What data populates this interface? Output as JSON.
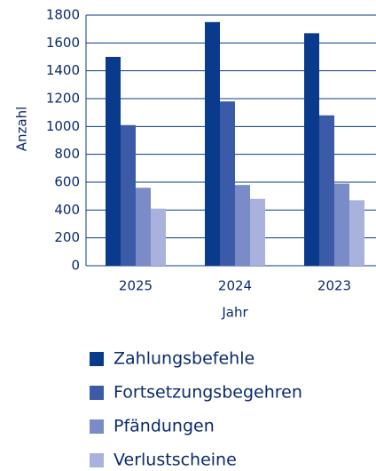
{
  "chart_data": {
    "type": "bar",
    "categories": [
      "2025",
      "2024",
      "2023"
    ],
    "series": [
      {
        "name": "Zahlungsbefehle",
        "color": "#0a3a8c",
        "values": [
          1500,
          1750,
          1670
        ]
      },
      {
        "name": "Fortsetzungsbegehren",
        "color": "#3b5aa8",
        "values": [
          1010,
          1180,
          1080
        ]
      },
      {
        "name": "Pfändungen",
        "color": "#7a8cc8",
        "values": [
          560,
          580,
          590
        ]
      },
      {
        "name": "Verlustscheine",
        "color": "#a8b2dc",
        "values": [
          410,
          480,
          470
        ]
      }
    ],
    "xlabel": "Jahr",
    "ylabel": "Anzahl",
    "ylim": [
      0,
      1800
    ],
    "yticks": [
      0,
      200,
      400,
      600,
      800,
      1000,
      1200,
      1400,
      1600,
      1800
    ],
    "grid": true
  }
}
